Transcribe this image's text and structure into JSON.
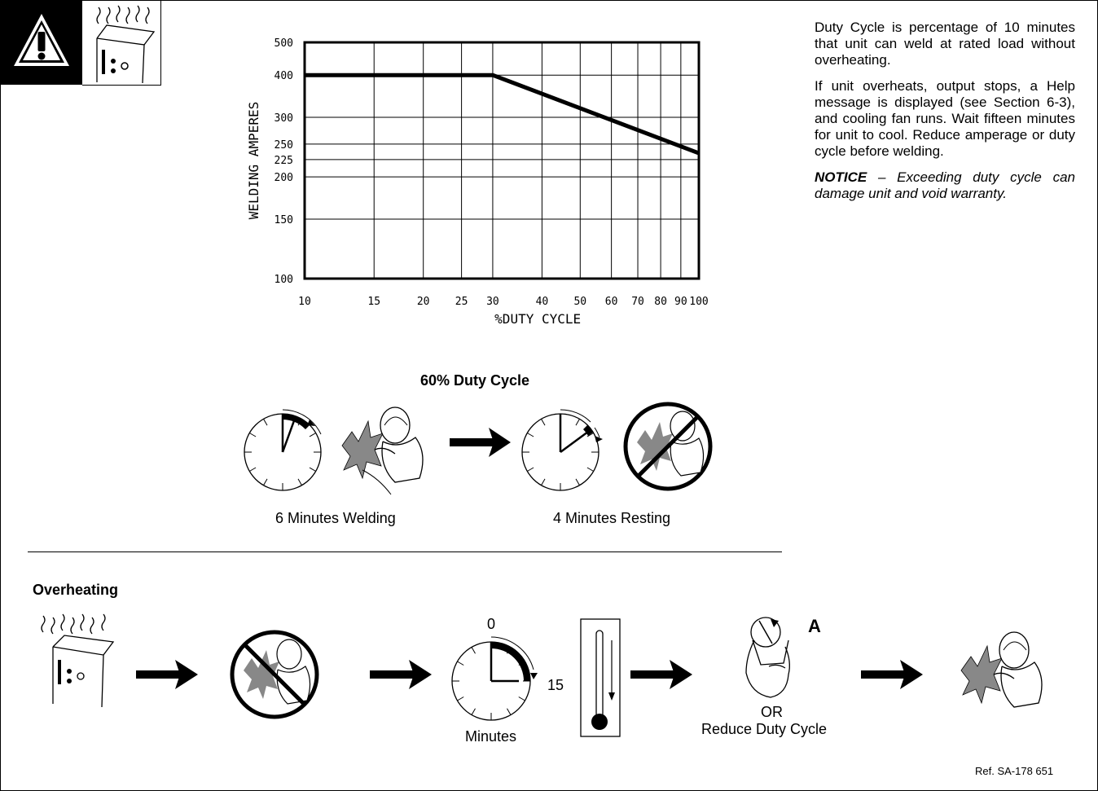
{
  "notice_paragraphs": {
    "p1": "Duty Cycle is percentage of 10 minutes that unit can weld at rated load without overheating.",
    "p2": "If unit overheats, output stops, a Help message is displayed (see Section 6-3), and cooling fan runs. Wait fifteen minutes for unit to cool. Reduce amperage or duty cycle before welding.",
    "notice_label": "NOTICE",
    "notice_dash": " – ",
    "notice_text": "Exceeding duty cycle can damage unit and void warranty."
  },
  "duty_cycle": {
    "title": "60% Duty Cycle",
    "welding_caption": "6 Minutes Welding",
    "resting_caption": "4 Minutes Resting"
  },
  "overheating": {
    "title": "Overheating",
    "timer_start": "0",
    "timer_end": "15",
    "minutes_caption": "Minutes",
    "control_label": "A",
    "or_label": "OR",
    "reduce_caption": "Reduce Duty Cycle"
  },
  "ref": "Ref. SA-178 651",
  "icons": [
    "warning-icon",
    "hot-unit-icon",
    "clock-icon",
    "welder-icon",
    "no-welding-icon",
    "arrow-icon",
    "thermometer-icon",
    "hand-knob-icon"
  ],
  "chart_data": {
    "type": "line",
    "xlabel": "%DUTY CYCLE",
    "ylabel": "WELDING AMPERES",
    "x_scale": "log",
    "y_scale": "log",
    "xlim": [
      10,
      100
    ],
    "ylim": [
      100,
      500
    ],
    "x_ticks": [
      "10",
      "15",
      "20",
      "25",
      "30",
      "40",
      "50",
      "60",
      "70",
      "80",
      "90",
      "100"
    ],
    "y_ticks": [
      "100",
      "150",
      "200",
      "225",
      "250",
      "300",
      "400",
      "500"
    ],
    "grid": true,
    "series": [
      {
        "x": [
          10,
          30,
          100
        ],
        "y": [
          400,
          400,
          235
        ]
      }
    ]
  }
}
